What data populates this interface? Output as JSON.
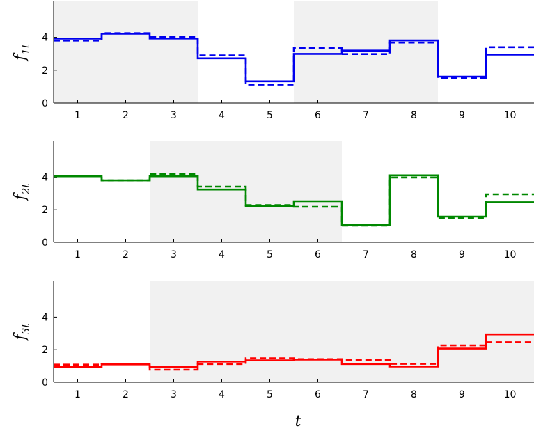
{
  "chart_data": [
    {
      "type": "line",
      "ylabel": {
        "main": "f",
        "sub": "1t"
      },
      "xlabel": "",
      "x_ticks": [
        "1",
        "2",
        "3",
        "4",
        "5",
        "6",
        "7",
        "8",
        "9",
        "10"
      ],
      "y_ticks": [
        "0",
        "2",
        "4"
      ],
      "xlim": [
        0.5,
        10.5
      ],
      "ylim": [
        0,
        5
      ],
      "color": "#0000ee",
      "shaded_ranges": [
        [
          0.5,
          3.5
        ],
        [
          5.5,
          8.5
        ]
      ],
      "series": [
        {
          "style": "solid",
          "values": [
            3.92,
            4.22,
            3.93,
            2.72,
            1.32,
            2.99,
            3.19,
            3.81,
            1.61,
            2.95
          ]
        },
        {
          "style": "dashed",
          "values": [
            3.8,
            4.25,
            4.03,
            2.9,
            1.12,
            3.35,
            2.98,
            3.68,
            1.54,
            3.4
          ]
        }
      ]
    },
    {
      "type": "line",
      "ylabel": {
        "main": "f",
        "sub": "2t"
      },
      "xlabel": "",
      "x_ticks": [
        "1",
        "2",
        "3",
        "4",
        "5",
        "6",
        "7",
        "8",
        "9",
        "10"
      ],
      "y_ticks": [
        "0",
        "2",
        "4"
      ],
      "xlim": [
        0.5,
        10.5
      ],
      "ylim": [
        0,
        5
      ],
      "color": "#008800",
      "shaded_ranges": [
        [
          2.5,
          6.5
        ]
      ],
      "series": [
        {
          "style": "solid",
          "values": [
            4.05,
            3.8,
            4.05,
            3.24,
            2.23,
            2.52,
            1.07,
            4.11,
            1.58,
            2.46
          ]
        },
        {
          "style": "dashed",
          "values": [
            4.07,
            3.8,
            4.2,
            3.42,
            2.28,
            2.18,
            1.03,
            3.98,
            1.49,
            2.95
          ]
        }
      ]
    },
    {
      "type": "line",
      "ylabel": {
        "main": "f",
        "sub": "3t"
      },
      "xlabel": "t",
      "x_ticks": [
        "1",
        "2",
        "3",
        "4",
        "5",
        "6",
        "7",
        "8",
        "9",
        "10"
      ],
      "y_ticks": [
        "0",
        "2",
        "4"
      ],
      "xlim": [
        0.5,
        10.5
      ],
      "ylim": [
        0,
        5
      ],
      "color": "#ff0000",
      "shaded_ranges": [
        [
          2.5,
          10.5
        ]
      ],
      "series": [
        {
          "style": "solid",
          "values": [
            0.95,
            1.1,
            0.93,
            1.27,
            1.34,
            1.39,
            1.12,
            0.96,
            2.07,
            2.94
          ]
        },
        {
          "style": "dashed",
          "values": [
            1.08,
            1.13,
            0.77,
            1.12,
            1.47,
            1.42,
            1.37,
            1.13,
            2.26,
            2.46
          ]
        }
      ]
    }
  ]
}
